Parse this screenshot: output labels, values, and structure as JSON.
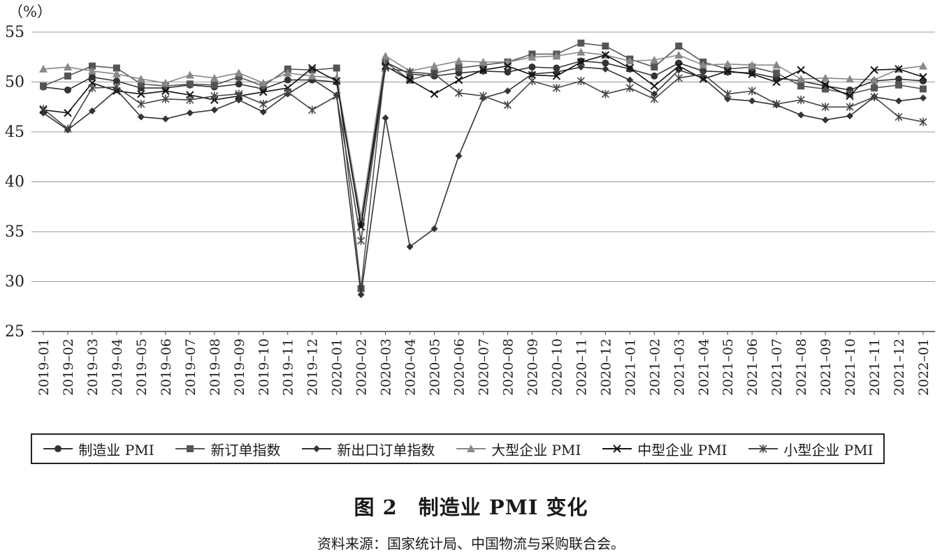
{
  "chart_data": {
    "type": "line",
    "title": "图 2　制造业 PMI 变化",
    "source": "资料来源：国家统计局、中国物流与采购联合会。",
    "ylabel": "（%）",
    "xlabel": "",
    "ylim": [
      25,
      55
    ],
    "yticks": [
      25,
      30,
      35,
      40,
      45,
      50,
      55
    ],
    "grid": true,
    "legend_position": "bottom",
    "x": [
      "2019–01",
      "2019–02",
      "2019–03",
      "2019–04",
      "2019–05",
      "2019–06",
      "2019–07",
      "2019–08",
      "2019–09",
      "2019–10",
      "2019–11",
      "2019–12",
      "2020–01",
      "2020–02",
      "2020–03",
      "2020–04",
      "2020–05",
      "2020–06",
      "2020–07",
      "2020–08",
      "2020–09",
      "2020–10",
      "2020–11",
      "2020–12",
      "2021–01",
      "2021–02",
      "2021–03",
      "2021–04",
      "2021–05",
      "2021–06",
      "2021–07",
      "2021–08",
      "2021–09",
      "2021–10",
      "2021–11",
      "2021–12",
      "2022–01"
    ],
    "series": [
      {
        "name": "制造业 PMI",
        "marker": "circle",
        "color": "#333333",
        "values": [
          49.5,
          49.2,
          50.5,
          50.1,
          49.4,
          49.4,
          49.7,
          49.5,
          49.8,
          49.3,
          50.2,
          50.2,
          50.0,
          35.7,
          52.0,
          50.8,
          50.6,
          50.9,
          51.1,
          51.0,
          51.5,
          51.4,
          52.1,
          51.9,
          51.3,
          50.6,
          51.9,
          51.1,
          51.0,
          50.9,
          50.4,
          50.1,
          49.6,
          49.2,
          50.1,
          50.3,
          50.1
        ]
      },
      {
        "name": "新订单指数",
        "marker": "square",
        "color": "#555555",
        "values": [
          49.6,
          50.6,
          51.6,
          51.4,
          49.8,
          49.6,
          49.8,
          49.7,
          50.5,
          49.6,
          51.3,
          51.2,
          51.4,
          29.3,
          52.0,
          50.2,
          50.9,
          51.4,
          51.7,
          52.0,
          52.8,
          52.8,
          53.9,
          53.6,
          52.3,
          51.5,
          53.6,
          52.0,
          51.3,
          51.5,
          50.9,
          49.6,
          49.3,
          48.8,
          49.4,
          49.7,
          49.3
        ]
      },
      {
        "name": "新出口订单指数",
        "marker": "diamond",
        "color": "#333333",
        "values": [
          46.9,
          45.2,
          47.1,
          49.2,
          46.5,
          46.3,
          46.9,
          47.2,
          48.2,
          47.0,
          48.8,
          50.3,
          48.7,
          28.7,
          46.4,
          33.5,
          35.3,
          42.6,
          48.4,
          49.1,
          50.8,
          51.0,
          51.5,
          51.3,
          50.2,
          48.8,
          51.2,
          50.4,
          48.3,
          48.1,
          47.7,
          46.7,
          46.2,
          46.6,
          48.5,
          48.1,
          48.4
        ]
      },
      {
        "name": "大型企业 PMI",
        "marker": "triangle",
        "color": "#888888",
        "values": [
          51.3,
          51.5,
          51.1,
          50.8,
          50.3,
          49.9,
          50.7,
          50.4,
          50.9,
          49.9,
          50.9,
          50.6,
          50.4,
          36.4,
          52.6,
          51.1,
          51.6,
          52.1,
          52.0,
          52.0,
          52.5,
          52.6,
          53.0,
          52.7,
          52.1,
          52.2,
          52.7,
          51.7,
          51.8,
          51.7,
          51.7,
          50.3,
          50.4,
          50.3,
          50.2,
          51.3,
          51.6
        ]
      },
      {
        "name": "中型企业 PMI",
        "marker": "x",
        "color": "#111111",
        "values": [
          47.2,
          46.9,
          49.9,
          49.1,
          48.8,
          49.1,
          48.7,
          48.2,
          48.6,
          49.0,
          49.4,
          51.4,
          50.1,
          35.5,
          51.6,
          50.2,
          48.8,
          50.2,
          51.2,
          51.6,
          50.7,
          50.6,
          52.0,
          52.7,
          51.4,
          49.6,
          51.6,
          50.3,
          51.1,
          50.8,
          50.0,
          51.2,
          49.7,
          48.6,
          51.2,
          51.3,
          50.5
        ]
      },
      {
        "name": "小型企业 PMI",
        "marker": "asterisk",
        "color": "#444444",
        "values": [
          47.3,
          45.3,
          49.4,
          49.5,
          47.8,
          48.3,
          48.2,
          48.6,
          48.8,
          47.8,
          49.0,
          47.2,
          48.6,
          34.1,
          51.4,
          51.0,
          50.8,
          48.9,
          48.6,
          47.7,
          50.1,
          49.4,
          50.1,
          48.8,
          49.4,
          48.3,
          50.4,
          50.8,
          48.8,
          49.1,
          47.8,
          48.2,
          47.5,
          47.5,
          48.5,
          46.5,
          46.0
        ]
      }
    ]
  }
}
